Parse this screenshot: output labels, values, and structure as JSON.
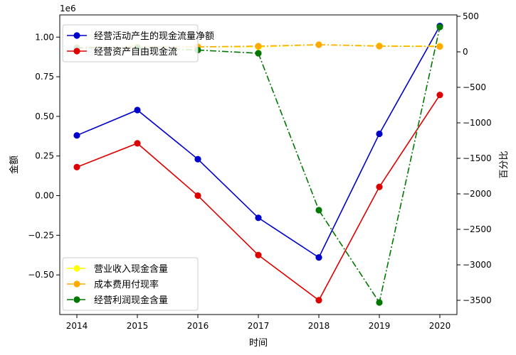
{
  "chart_data": {
    "type": "line",
    "x": [
      "2014",
      "2015",
      "2016",
      "2017",
      "2018",
      "2019",
      "2020"
    ],
    "xlabel": "时间",
    "ylabel_left": "金额",
    "ylabel_right": "百分比",
    "offset_text": "1e6",
    "ylim_left": [
      -0.75,
      1.14
    ],
    "ylim_right": [
      -3700,
      520
    ],
    "yticks_left": [
      "1.00",
      "0.75",
      "0.50",
      "0.25",
      "0.00",
      "−0.25",
      "−0.50"
    ],
    "yticks_left_values": [
      1.0,
      0.75,
      0.5,
      0.25,
      0.0,
      -0.25,
      -0.5
    ],
    "yticks_right": [
      "500",
      "0",
      "−500",
      "−1000",
      "−1500",
      "−2000",
      "−2500",
      "−3000",
      "−3500"
    ],
    "yticks_right_values": [
      500,
      0,
      -500,
      -1000,
      -1500,
      -2000,
      -2500,
      -3000,
      -3500
    ],
    "series_left": [
      {
        "name": "经营活动产生的现金流量净额",
        "color": "#0000cc",
        "style": "solid",
        "values": [
          0.38,
          0.54,
          0.23,
          -0.14,
          -0.39,
          0.39,
          1.07
        ]
      },
      {
        "name": "经营资产自由现金流",
        "color": "#dd0000",
        "style": "solid",
        "values": [
          0.18,
          0.33,
          0.0,
          -0.375,
          -0.66,
          0.055,
          0.635
        ]
      }
    ],
    "series_right": [
      {
        "name": "营业收入现金含量",
        "color": "#ffff00",
        "style": "dashdot",
        "values": [
          55,
          70,
          70,
          70,
          100,
          85,
          80
        ]
      },
      {
        "name": "成本费用付现率",
        "color": "#ffaa00",
        "style": "dashdot",
        "values": [
          60,
          70,
          70,
          80,
          100,
          80,
          75
        ]
      },
      {
        "name": "经营利润现金含量",
        "color": "#007700",
        "style": "dashdot",
        "values": [
          55,
          55,
          25,
          -20,
          -2230,
          -3530,
          350
        ]
      }
    ],
    "legend_left_position": "upper-left",
    "legend_right_position": "lower-left"
  }
}
